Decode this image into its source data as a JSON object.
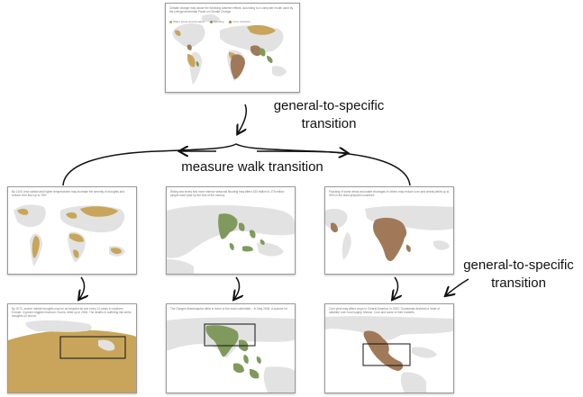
{
  "labels": {
    "top_transition": [
      "general-to-specific",
      "transition"
    ],
    "middle_transition": "measure walk transition",
    "right_transition": [
      "general-to-specific",
      "transition"
    ]
  },
  "panels": {
    "overview": {
      "caption": "Climate change may cause the following adverse effects, according to a computer model used by the Intergovernmental Panel on Climate Change",
      "legend": [
        "Water stress and droughts",
        "Flooding",
        "Crop reduction"
      ]
    },
    "droughts": {
      "caption": "By 2100, less rainfall and higher temperatures may increase the severity of droughts and reduce river flow up to 75%"
    },
    "flooding": {
      "caption": "Rising sea levels and more intense seasonal flooding may affect 150 million to 275 million people each year by the end of the century"
    },
    "crops": {
      "caption": "Flooding of some areas and water shortages in others may reduce corn and wheat yields up to 30% in the least-prepared countries"
    },
    "drought_detail": {
      "caption": "By 2070, severe rainfall droughts may be as frequent as one every 10 years in southern Europe. Cyprus's biggest reservoir, Kouris, dried up in 2008. The deaths in suffering risk worst droughts on record."
    },
    "flood_detail": {
      "caption": "The Ganges-Brahmaputra delta is home to the most vulnerable... In May 2008, a cyclone hit"
    },
    "crop_detail": {
      "caption": "Corn yield may affect crops in Central America. In 2002, Guatemala declared a 'state of calamity' over food supply. Mexico, Corn and some of their markets."
    }
  },
  "colors": {
    "drought": "#c8a55a",
    "flood": "#7f9a5c",
    "crop": "#a07a58",
    "land": "#e2e2e2",
    "border": "#9a9a9a",
    "arrow": "#111111"
  }
}
